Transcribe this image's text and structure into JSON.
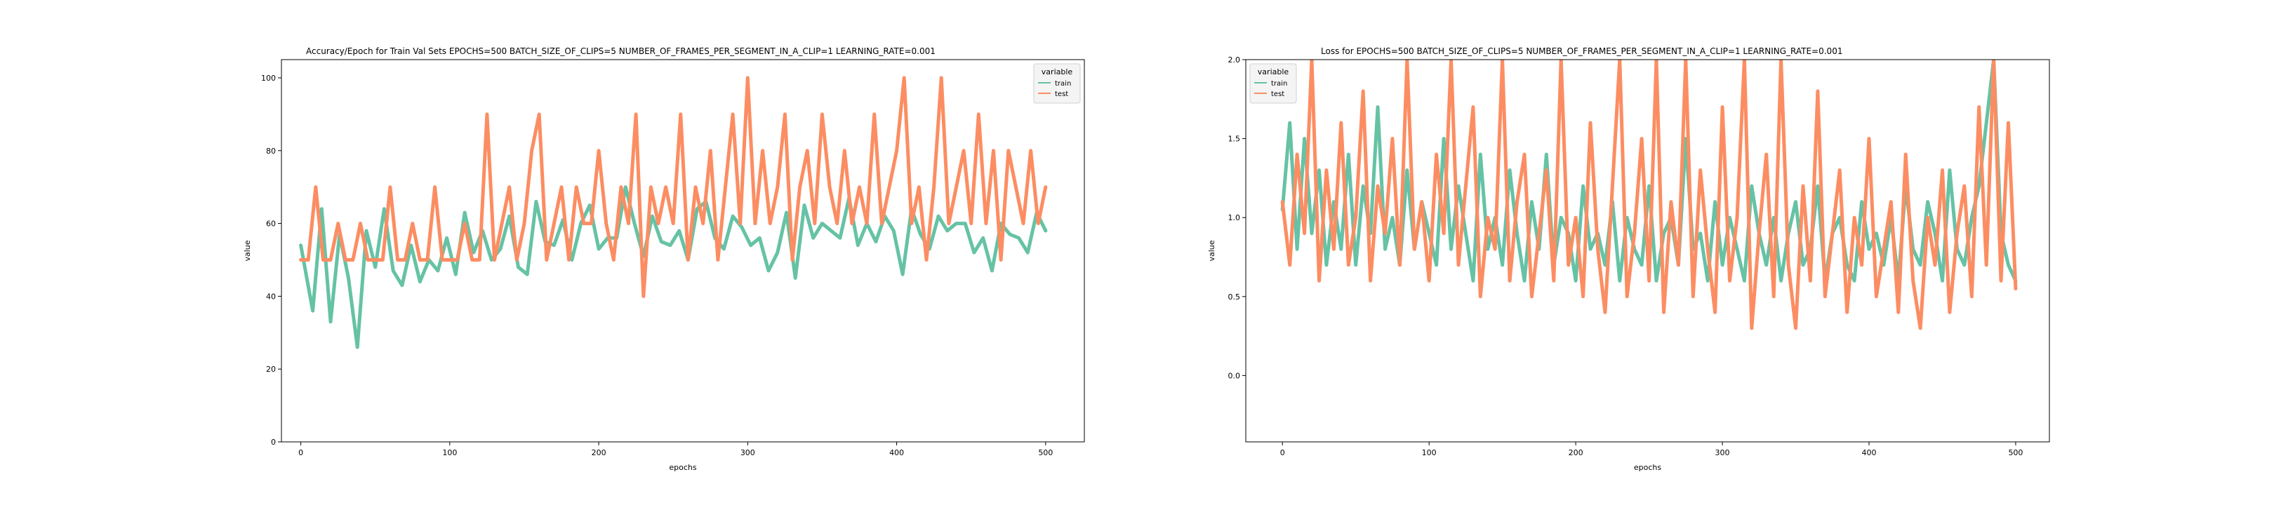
{
  "colors": {
    "train": "#66c2a5",
    "test": "#fc8d62",
    "axis": "#000000",
    "legend_bg": "#f4f4f4"
  },
  "chart_data": [
    {
      "type": "line",
      "title": "Accuracy/Epoch for Train Val Sets EPOCHS=500                 BATCH_SIZE_OF_CLIPS=5                 NUMBER_OF_FRAMES_PER_SEGMENT_IN_A_CLIP=1                 LEARNING_RATE=0.001",
      "xlabel": "epochs",
      "ylabel": "value",
      "xlim": [
        -13,
        526
      ],
      "ylim": [
        0,
        105
      ],
      "xticks": [
        0,
        100,
        200,
        300,
        400,
        500
      ],
      "yticks": [
        0,
        20,
        40,
        60,
        80,
        100
      ],
      "legend": {
        "title": "variable",
        "placement": "top-right",
        "entries": [
          "train",
          "test"
        ]
      },
      "series": [
        {
          "name": "train",
          "x": [
            0,
            8,
            14,
            20,
            26,
            32,
            38,
            44,
            50,
            56,
            62,
            68,
            74,
            80,
            86,
            92,
            98,
            104,
            110,
            116,
            122,
            128,
            134,
            140,
            146,
            152,
            158,
            164,
            170,
            176,
            182,
            188,
            194,
            200,
            206,
            212,
            218,
            224,
            230,
            236,
            242,
            248,
            254,
            260,
            266,
            272,
            278,
            284,
            290,
            296,
            302,
            308,
            314,
            320,
            326,
            332,
            338,
            344,
            350,
            356,
            362,
            368,
            374,
            380,
            386,
            392,
            398,
            404,
            410,
            416,
            422,
            428,
            434,
            440,
            446,
            452,
            458,
            464,
            470,
            476,
            482,
            488,
            494,
            500
          ],
          "values": [
            54,
            36,
            64,
            33,
            57,
            45,
            26,
            58,
            48,
            64,
            47,
            43,
            54,
            44,
            50,
            47,
            56,
            46,
            63,
            52,
            58,
            50,
            53,
            62,
            48,
            46,
            66,
            55,
            54,
            61,
            50,
            60,
            65,
            53,
            56,
            56,
            70,
            60,
            51,
            62,
            55,
            54,
            58,
            50,
            64,
            66,
            56,
            53,
            62,
            59,
            54,
            56,
            47,
            52,
            63,
            45,
            65,
            56,
            60,
            58,
            56,
            67,
            54,
            60,
            55,
            62,
            58,
            46,
            64,
            57,
            53,
            62,
            58,
            60,
            60,
            52,
            56,
            47,
            60,
            57,
            56,
            52,
            63,
            58
          ]
        },
        {
          "name": "test",
          "x": [
            0,
            5,
            10,
            15,
            20,
            25,
            30,
            35,
            40,
            45,
            50,
            55,
            60,
            65,
            70,
            75,
            80,
            85,
            90,
            95,
            100,
            105,
            110,
            115,
            120,
            125,
            130,
            135,
            140,
            145,
            150,
            155,
            160,
            165,
            170,
            175,
            180,
            185,
            190,
            195,
            200,
            205,
            210,
            215,
            220,
            225,
            230,
            235,
            240,
            245,
            250,
            255,
            260,
            265,
            270,
            275,
            280,
            285,
            290,
            295,
            300,
            305,
            310,
            315,
            320,
            325,
            330,
            335,
            340,
            345,
            350,
            355,
            360,
            365,
            370,
            375,
            380,
            385,
            390,
            395,
            400,
            405,
            410,
            415,
            420,
            425,
            430,
            435,
            440,
            445,
            450,
            455,
            460,
            465,
            470,
            475,
            480,
            485,
            490,
            495,
            500
          ],
          "values": [
            50,
            50,
            70,
            50,
            50,
            60,
            50,
            50,
            60,
            50,
            50,
            50,
            70,
            50,
            50,
            60,
            50,
            50,
            70,
            50,
            50,
            50,
            60,
            50,
            50,
            90,
            50,
            60,
            70,
            50,
            60,
            80,
            90,
            50,
            60,
            70,
            50,
            70,
            60,
            60,
            80,
            60,
            50,
            70,
            60,
            90,
            40,
            70,
            60,
            70,
            60,
            90,
            50,
            70,
            60,
            80,
            50,
            70,
            90,
            60,
            100,
            60,
            80,
            60,
            70,
            90,
            50,
            70,
            80,
            60,
            90,
            70,
            60,
            80,
            60,
            70,
            60,
            90,
            60,
            70,
            80,
            100,
            60,
            70,
            50,
            70,
            100,
            60,
            70,
            80,
            60,
            90,
            60,
            80,
            50,
            80,
            70,
            60,
            80,
            60,
            70
          ]
        }
      ]
    },
    {
      "type": "line",
      "title": "Loss for  EPOCHS=500                 BATCH_SIZE_OF_CLIPS=5                 NUMBER_OF_FRAMES_PER_SEGMENT_IN_A_CLIP=1                 LEARNING_RATE=0.001",
      "xlabel": "epochs",
      "ylabel": "value",
      "xlim": [
        -25,
        523
      ],
      "ylim": [
        -0.42,
        2.0
      ],
      "xticks": [
        0,
        100,
        200,
        300,
        400,
        500
      ],
      "yticks": [
        0.0,
        0.5,
        1.0,
        1.5,
        2.0
      ],
      "legend": {
        "title": "variable",
        "placement": "top-left",
        "entries": [
          "train",
          "test"
        ]
      },
      "series": [
        {
          "name": "train",
          "x": [
            0,
            5,
            10,
            15,
            20,
            25,
            30,
            35,
            40,
            45,
            50,
            55,
            60,
            65,
            70,
            75,
            80,
            85,
            90,
            95,
            100,
            105,
            110,
            115,
            120,
            125,
            130,
            135,
            140,
            145,
            150,
            155,
            160,
            165,
            170,
            175,
            180,
            185,
            190,
            195,
            200,
            205,
            210,
            215,
            220,
            225,
            230,
            235,
            240,
            245,
            250,
            255,
            260,
            265,
            270,
            275,
            280,
            285,
            290,
            295,
            300,
            305,
            310,
            315,
            320,
            325,
            330,
            335,
            340,
            345,
            350,
            355,
            360,
            365,
            370,
            375,
            380,
            385,
            390,
            395,
            400,
            405,
            410,
            415,
            420,
            425,
            430,
            435,
            440,
            445,
            450,
            455,
            460,
            465,
            470,
            475,
            480,
            485,
            490,
            495,
            500
          ],
          "values": [
            1.05,
            1.6,
            0.8,
            1.5,
            0.9,
            1.3,
            0.7,
            1.1,
            0.8,
            1.4,
            0.7,
            1.2,
            0.9,
            1.7,
            0.8,
            1.0,
            0.7,
            1.3,
            0.8,
            1.1,
            0.9,
            0.7,
            1.5,
            0.8,
            1.2,
            0.9,
            0.6,
            1.4,
            0.8,
            1.0,
            0.7,
            1.3,
            0.9,
            0.6,
            1.1,
            0.8,
            1.4,
            0.7,
            1.0,
            0.9,
            0.6,
            1.2,
            0.8,
            0.9,
            0.7,
            1.1,
            0.6,
            1.0,
            0.8,
            0.7,
            1.2,
            0.6,
            0.9,
            1.0,
            0.7,
            1.5,
            0.8,
            0.9,
            0.6,
            1.1,
            0.7,
            1.0,
            0.8,
            0.6,
            1.2,
            0.9,
            0.7,
            1.0,
            0.6,
            0.9,
            1.1,
            0.7,
            0.8,
            1.2,
            0.6,
            0.9,
            1.0,
            0.7,
            0.6,
            1.1,
            0.8,
            0.9,
            0.7,
            1.0,
            0.6,
            1.2,
            0.8,
            0.7,
            1.1,
            0.9,
            0.6,
            1.3,
            0.8,
            0.7,
            1.0,
            1.2,
            1.6,
            2.0,
            0.9,
            0.7,
            0.6
          ]
        },
        {
          "name": "test",
          "x": [
            0,
            5,
            10,
            15,
            20,
            25,
            30,
            35,
            40,
            45,
            50,
            55,
            60,
            65,
            70,
            75,
            80,
            85,
            90,
            95,
            100,
            105,
            110,
            115,
            120,
            125,
            130,
            135,
            140,
            145,
            150,
            155,
            160,
            165,
            170,
            175,
            180,
            185,
            190,
            195,
            200,
            205,
            210,
            215,
            220,
            225,
            230,
            235,
            240,
            245,
            250,
            255,
            260,
            265,
            270,
            275,
            280,
            285,
            290,
            295,
            300,
            305,
            310,
            315,
            320,
            325,
            330,
            335,
            340,
            345,
            350,
            355,
            360,
            365,
            370,
            375,
            380,
            385,
            390,
            395,
            400,
            405,
            410,
            415,
            420,
            425,
            430,
            435,
            440,
            445,
            450,
            455,
            460,
            465,
            470,
            475,
            480,
            485,
            490,
            495,
            500
          ],
          "values": [
            1.1,
            0.7,
            1.4,
            0.9,
            2.0,
            0.6,
            1.3,
            0.8,
            1.6,
            0.7,
            1.0,
            1.8,
            0.6,
            1.2,
            0.9,
            1.5,
            0.7,
            2.0,
            0.8,
            1.1,
            0.6,
            1.4,
            0.9,
            2.0,
            0.7,
            1.2,
            1.7,
            0.5,
            1.0,
            0.8,
            2.0,
            0.6,
            1.1,
            1.4,
            0.5,
            0.9,
            1.3,
            0.6,
            2.0,
            0.7,
            1.0,
            0.5,
            1.6,
            0.8,
            0.4,
            1.2,
            2.0,
            0.5,
            0.9,
            1.5,
            0.6,
            2.0,
            0.4,
            1.1,
            0.7,
            2.0,
            0.5,
            1.3,
            0.8,
            0.4,
            1.7,
            0.6,
            1.0,
            2.0,
            0.3,
            0.9,
            1.4,
            0.5,
            2.0,
            0.7,
            0.3,
            1.2,
            0.6,
            1.8,
            0.5,
            0.9,
            1.3,
            0.4,
            1.0,
            0.7,
            1.5,
            0.5,
            0.8,
            1.1,
            0.4,
            1.4,
            0.6,
            0.3,
            1.0,
            0.7,
            1.3,
            0.4,
            0.9,
            1.2,
            0.5,
            1.7,
            0.7,
            2.0,
            0.6,
            1.6,
            0.55
          ]
        }
      ]
    }
  ]
}
